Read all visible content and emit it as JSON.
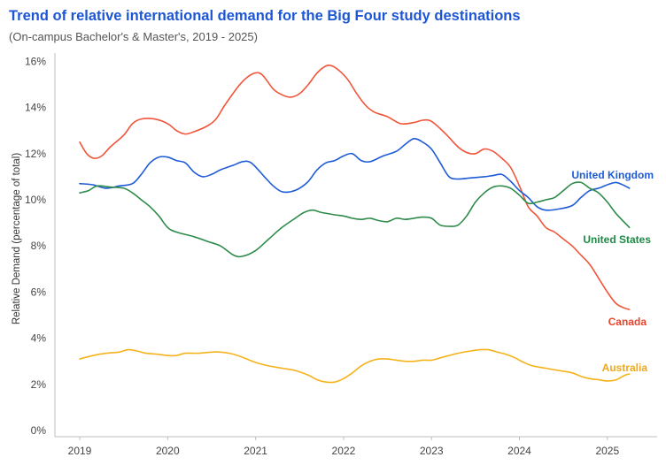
{
  "chart_data": {
    "type": "line",
    "title": "Trend of relative international demand for the Big Four study destinations",
    "subtitle": "(On-campus Bachelor's & Master's, 2019 - 2025)",
    "xlabel": "",
    "ylabel": "Relative Demand (percentage of total)",
    "xlim": [
      2019,
      2025.5
    ],
    "ylim": [
      0,
      16.8
    ],
    "x_ticks": [
      2019,
      2020,
      2021,
      2022,
      2023,
      2024,
      2025
    ],
    "x_tick_labels": [
      "2019",
      "2020",
      "2021",
      "2022",
      "2023",
      "2024",
      "2025"
    ],
    "y_ticks": [
      0,
      2,
      4,
      6,
      8,
      10,
      12,
      14,
      16
    ],
    "y_tick_labels": [
      "0%",
      "2%",
      "4%",
      "6%",
      "8%",
      "10%",
      "12%",
      "14%",
      "16%"
    ],
    "grid": false,
    "legend": "inline labels at line ends",
    "series": [
      {
        "name": "Canada",
        "color": "#f0553a",
        "label_color": "#e8452d",
        "points": [
          [
            2019.0,
            12.5
          ],
          [
            2019.08,
            12.0
          ],
          [
            2019.16,
            11.8
          ],
          [
            2019.25,
            11.9
          ],
          [
            2019.35,
            12.3
          ],
          [
            2019.5,
            12.8
          ],
          [
            2019.6,
            13.3
          ],
          [
            2019.7,
            13.5
          ],
          [
            2019.85,
            13.5
          ],
          [
            2020.0,
            13.3
          ],
          [
            2020.1,
            13.0
          ],
          [
            2020.2,
            12.85
          ],
          [
            2020.3,
            12.95
          ],
          [
            2020.45,
            13.2
          ],
          [
            2020.55,
            13.5
          ],
          [
            2020.65,
            14.1
          ],
          [
            2020.8,
            14.9
          ],
          [
            2020.9,
            15.3
          ],
          [
            2021.0,
            15.5
          ],
          [
            2021.08,
            15.4
          ],
          [
            2021.2,
            14.8
          ],
          [
            2021.3,
            14.55
          ],
          [
            2021.4,
            14.45
          ],
          [
            2021.5,
            14.6
          ],
          [
            2021.6,
            15.0
          ],
          [
            2021.7,
            15.5
          ],
          [
            2021.8,
            15.8
          ],
          [
            2021.87,
            15.8
          ],
          [
            2021.95,
            15.6
          ],
          [
            2022.05,
            15.2
          ],
          [
            2022.15,
            14.6
          ],
          [
            2022.25,
            14.1
          ],
          [
            2022.35,
            13.8
          ],
          [
            2022.5,
            13.6
          ],
          [
            2022.65,
            13.3
          ],
          [
            2022.8,
            13.35
          ],
          [
            2022.9,
            13.45
          ],
          [
            2023.0,
            13.4
          ],
          [
            2023.15,
            12.9
          ],
          [
            2023.3,
            12.3
          ],
          [
            2023.4,
            12.05
          ],
          [
            2023.5,
            12.0
          ],
          [
            2023.6,
            12.2
          ],
          [
            2023.7,
            12.1
          ],
          [
            2023.8,
            11.8
          ],
          [
            2023.9,
            11.4
          ],
          [
            2024.0,
            10.6
          ],
          [
            2024.1,
            9.7
          ],
          [
            2024.2,
            9.3
          ],
          [
            2024.3,
            8.8
          ],
          [
            2024.4,
            8.6
          ],
          [
            2024.5,
            8.3
          ],
          [
            2024.6,
            8.0
          ],
          [
            2024.7,
            7.6
          ],
          [
            2024.8,
            7.2
          ],
          [
            2024.9,
            6.6
          ],
          [
            2025.0,
            6.0
          ],
          [
            2025.1,
            5.5
          ],
          [
            2025.2,
            5.3
          ],
          [
            2025.25,
            5.25
          ]
        ]
      },
      {
        "name": "United Kingdom",
        "color": "#1e5bd6",
        "label_color": "#1e5bd6",
        "points": [
          [
            2019.0,
            10.7
          ],
          [
            2019.15,
            10.65
          ],
          [
            2019.3,
            10.5
          ],
          [
            2019.45,
            10.6
          ],
          [
            2019.6,
            10.7
          ],
          [
            2019.7,
            11.1
          ],
          [
            2019.8,
            11.6
          ],
          [
            2019.9,
            11.85
          ],
          [
            2020.0,
            11.85
          ],
          [
            2020.1,
            11.7
          ],
          [
            2020.2,
            11.6
          ],
          [
            2020.3,
            11.2
          ],
          [
            2020.4,
            11.0
          ],
          [
            2020.5,
            11.1
          ],
          [
            2020.6,
            11.3
          ],
          [
            2020.75,
            11.5
          ],
          [
            2020.85,
            11.65
          ],
          [
            2020.95,
            11.6
          ],
          [
            2021.1,
            11.0
          ],
          [
            2021.2,
            10.6
          ],
          [
            2021.3,
            10.35
          ],
          [
            2021.4,
            10.35
          ],
          [
            2021.5,
            10.5
          ],
          [
            2021.6,
            10.8
          ],
          [
            2021.7,
            11.3
          ],
          [
            2021.8,
            11.6
          ],
          [
            2021.9,
            11.7
          ],
          [
            2022.0,
            11.9
          ],
          [
            2022.1,
            12.0
          ],
          [
            2022.2,
            11.7
          ],
          [
            2022.3,
            11.65
          ],
          [
            2022.45,
            11.9
          ],
          [
            2022.6,
            12.1
          ],
          [
            2022.7,
            12.4
          ],
          [
            2022.8,
            12.65
          ],
          [
            2022.9,
            12.5
          ],
          [
            2023.0,
            12.2
          ],
          [
            2023.1,
            11.6
          ],
          [
            2023.2,
            11.0
          ],
          [
            2023.3,
            10.9
          ],
          [
            2023.45,
            10.95
          ],
          [
            2023.6,
            11.0
          ],
          [
            2023.7,
            11.05
          ],
          [
            2023.8,
            11.1
          ],
          [
            2023.9,
            10.8
          ],
          [
            2024.0,
            10.4
          ],
          [
            2024.1,
            10.1
          ],
          [
            2024.2,
            9.7
          ],
          [
            2024.3,
            9.55
          ],
          [
            2024.45,
            9.6
          ],
          [
            2024.6,
            9.75
          ],
          [
            2024.7,
            10.1
          ],
          [
            2024.8,
            10.4
          ],
          [
            2024.9,
            10.5
          ],
          [
            2025.0,
            10.65
          ],
          [
            2025.1,
            10.75
          ],
          [
            2025.2,
            10.6
          ],
          [
            2025.25,
            10.5
          ]
        ]
      },
      {
        "name": "United States",
        "color": "#2e8b4a",
        "label_color": "#1e8a46",
        "points": [
          [
            2019.0,
            10.3
          ],
          [
            2019.1,
            10.4
          ],
          [
            2019.2,
            10.6
          ],
          [
            2019.35,
            10.55
          ],
          [
            2019.5,
            10.5
          ],
          [
            2019.6,
            10.3
          ],
          [
            2019.7,
            10.0
          ],
          [
            2019.8,
            9.7
          ],
          [
            2019.9,
            9.3
          ],
          [
            2020.0,
            8.8
          ],
          [
            2020.1,
            8.6
          ],
          [
            2020.3,
            8.4
          ],
          [
            2020.45,
            8.2
          ],
          [
            2020.6,
            8.0
          ],
          [
            2020.75,
            7.6
          ],
          [
            2020.85,
            7.55
          ],
          [
            2021.0,
            7.8
          ],
          [
            2021.15,
            8.3
          ],
          [
            2021.3,
            8.8
          ],
          [
            2021.45,
            9.2
          ],
          [
            2021.55,
            9.45
          ],
          [
            2021.65,
            9.55
          ],
          [
            2021.75,
            9.45
          ],
          [
            2021.9,
            9.35
          ],
          [
            2022.0,
            9.3
          ],
          [
            2022.1,
            9.2
          ],
          [
            2022.2,
            9.15
          ],
          [
            2022.3,
            9.2
          ],
          [
            2022.4,
            9.1
          ],
          [
            2022.5,
            9.05
          ],
          [
            2022.6,
            9.2
          ],
          [
            2022.7,
            9.15
          ],
          [
            2022.8,
            9.2
          ],
          [
            2022.9,
            9.25
          ],
          [
            2023.0,
            9.2
          ],
          [
            2023.1,
            8.9
          ],
          [
            2023.2,
            8.85
          ],
          [
            2023.3,
            8.9
          ],
          [
            2023.4,
            9.3
          ],
          [
            2023.5,
            9.9
          ],
          [
            2023.6,
            10.3
          ],
          [
            2023.7,
            10.55
          ],
          [
            2023.8,
            10.6
          ],
          [
            2023.9,
            10.5
          ],
          [
            2024.0,
            10.2
          ],
          [
            2024.1,
            9.85
          ],
          [
            2024.2,
            9.9
          ],
          [
            2024.3,
            10.0
          ],
          [
            2024.4,
            10.1
          ],
          [
            2024.5,
            10.4
          ],
          [
            2024.6,
            10.7
          ],
          [
            2024.7,
            10.75
          ],
          [
            2024.8,
            10.5
          ],
          [
            2024.9,
            10.3
          ],
          [
            2025.0,
            9.9
          ],
          [
            2025.1,
            9.4
          ],
          [
            2025.25,
            8.8
          ]
        ]
      },
      {
        "name": "Australia",
        "color": "#f5b21b",
        "label_color": "#f0a81a",
        "points": [
          [
            2019.0,
            3.1
          ],
          [
            2019.15,
            3.25
          ],
          [
            2019.3,
            3.35
          ],
          [
            2019.45,
            3.4
          ],
          [
            2019.55,
            3.5
          ],
          [
            2019.65,
            3.45
          ],
          [
            2019.75,
            3.35
          ],
          [
            2019.9,
            3.3
          ],
          [
            2020.0,
            3.25
          ],
          [
            2020.1,
            3.25
          ],
          [
            2020.2,
            3.35
          ],
          [
            2020.35,
            3.35
          ],
          [
            2020.5,
            3.4
          ],
          [
            2020.6,
            3.4
          ],
          [
            2020.7,
            3.35
          ],
          [
            2020.8,
            3.25
          ],
          [
            2020.9,
            3.1
          ],
          [
            2021.0,
            2.95
          ],
          [
            2021.15,
            2.8
          ],
          [
            2021.3,
            2.7
          ],
          [
            2021.45,
            2.6
          ],
          [
            2021.6,
            2.4
          ],
          [
            2021.7,
            2.2
          ],
          [
            2021.8,
            2.1
          ],
          [
            2021.9,
            2.1
          ],
          [
            2022.0,
            2.25
          ],
          [
            2022.1,
            2.5
          ],
          [
            2022.2,
            2.8
          ],
          [
            2022.3,
            3.0
          ],
          [
            2022.4,
            3.1
          ],
          [
            2022.5,
            3.1
          ],
          [
            2022.6,
            3.05
          ],
          [
            2022.7,
            3.0
          ],
          [
            2022.8,
            3.0
          ],
          [
            2022.9,
            3.05
          ],
          [
            2023.0,
            3.05
          ],
          [
            2023.1,
            3.15
          ],
          [
            2023.2,
            3.25
          ],
          [
            2023.3,
            3.35
          ],
          [
            2023.45,
            3.45
          ],
          [
            2023.55,
            3.5
          ],
          [
            2023.65,
            3.5
          ],
          [
            2023.75,
            3.4
          ],
          [
            2023.85,
            3.3
          ],
          [
            2023.95,
            3.15
          ],
          [
            2024.05,
            2.95
          ],
          [
            2024.15,
            2.8
          ],
          [
            2024.3,
            2.7
          ],
          [
            2024.45,
            2.6
          ],
          [
            2024.6,
            2.5
          ],
          [
            2024.7,
            2.35
          ],
          [
            2024.8,
            2.25
          ],
          [
            2024.9,
            2.2
          ],
          [
            2025.0,
            2.15
          ],
          [
            2025.1,
            2.2
          ],
          [
            2025.2,
            2.4
          ],
          [
            2025.25,
            2.45
          ]
        ]
      }
    ]
  }
}
